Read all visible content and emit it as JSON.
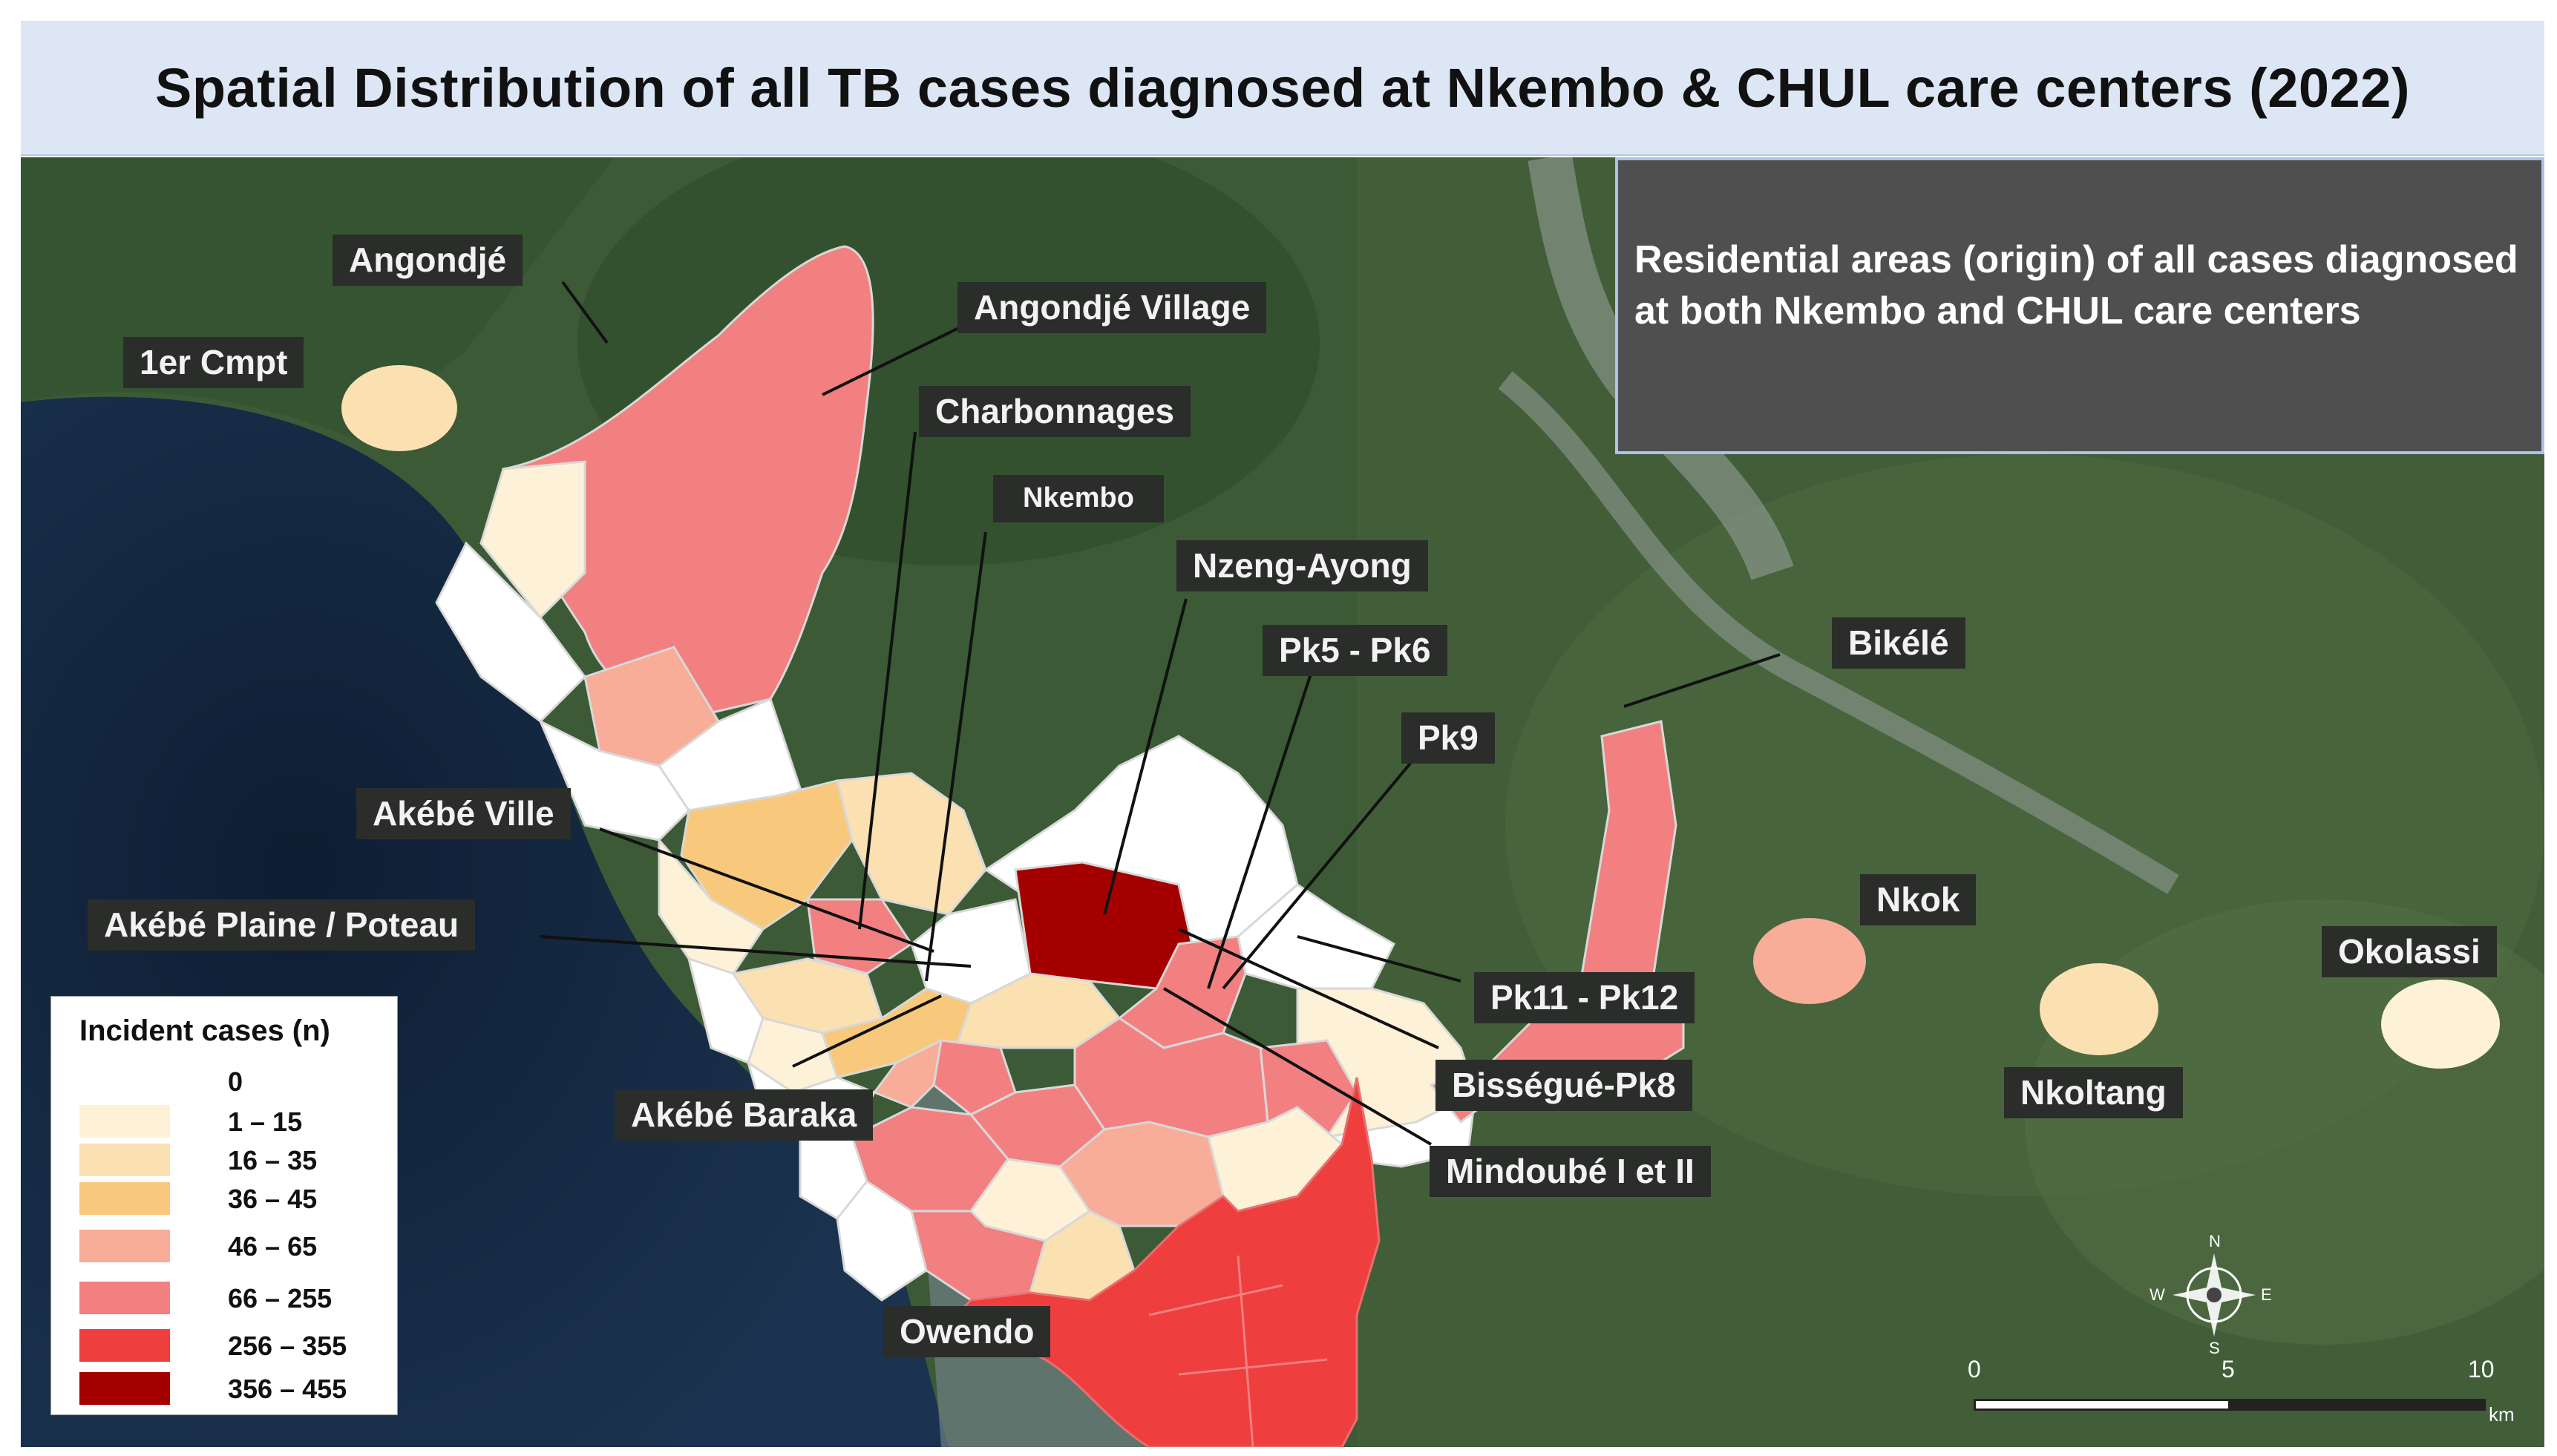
{
  "title": "Spatial Distribution of all TB cases diagnosed at Nkembo & CHUL care centers (2022)",
  "info_box": "Residential areas (origin) of all cases diagnosed at both  Nkembo and CHUL care centers",
  "labels": {
    "angondje": "Angondjé",
    "angondje_village": "Angondjé Village",
    "premier_cmpt": "1er Cmpt",
    "charbonnages": "Charbonnages",
    "nkembo": "Nkembo",
    "nzeng_ayong": "Nzeng-Ayong",
    "pk5_pk6": "Pk5 - Pk6",
    "pk9": "Pk9",
    "bikele": "Bikélé",
    "akebe_ville": "Akébé Ville",
    "akebe_plaine": "Akébé Plaine / Poteau",
    "nkok": "Nkok",
    "okolassi": "Okolassi",
    "pk11_pk12": "Pk11 - Pk12",
    "bissegue": "Bisségué-Pk8",
    "nkoltang": "Nkoltang",
    "akebe_baraka": "Akébé Baraka",
    "mindoube": "Mindoubé I et II",
    "owendo": "Owendo"
  },
  "legend": {
    "title": "Incident cases (n)",
    "classes": [
      {
        "label": "0",
        "color": "#ffffff"
      },
      {
        "label": "1 – 15",
        "color": "#fdf1d8"
      },
      {
        "label": "16 – 35",
        "color": "#fbe0b2"
      },
      {
        "label": "36 – 45",
        "color": "#f8c97c"
      },
      {
        "label": "46 – 65",
        "color": "#f7ad98"
      },
      {
        "label": "66 – 255",
        "color": "#f28080"
      },
      {
        "label": "256 – 355",
        "color": "#ee3e3e"
      },
      {
        "label": "356 – 455",
        "color": "#a50000"
      }
    ]
  },
  "scale_bar": {
    "ticks": [
      "0",
      "5",
      "10"
    ],
    "unit": "km"
  },
  "compass": {
    "n": "N",
    "s": "S",
    "e": "E",
    "w": "W"
  }
}
